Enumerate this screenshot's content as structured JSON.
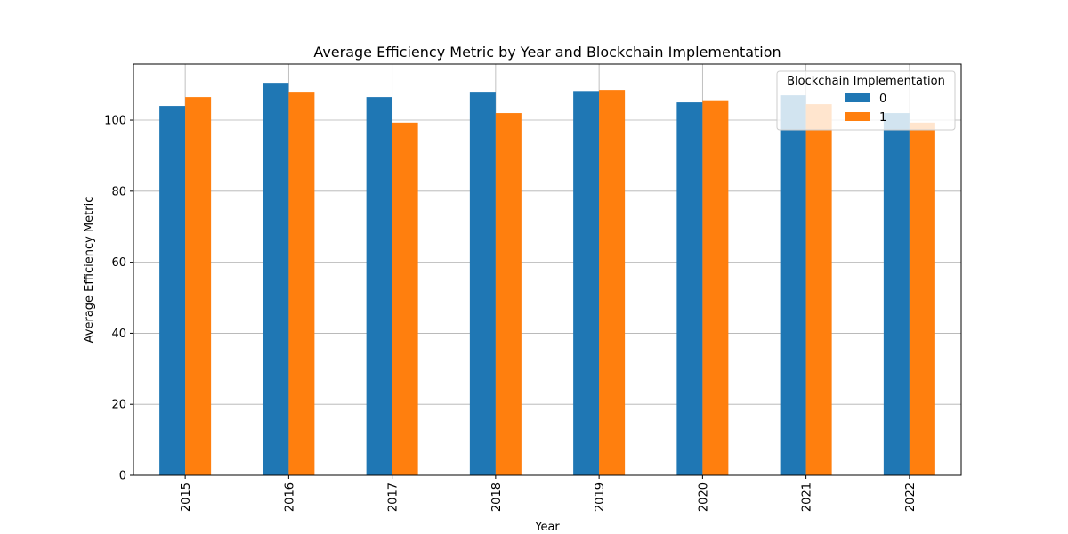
{
  "chart_data": {
    "type": "bar",
    "title": "Average Efficiency Metric by Year and Blockchain Implementation",
    "xlabel": "Year",
    "ylabel": "Average Efficiency Metric",
    "categories": [
      "2015",
      "2016",
      "2017",
      "2018",
      "2019",
      "2020",
      "2021",
      "2022"
    ],
    "series": [
      {
        "name": "0",
        "color": "#1f77b4",
        "values": [
          104.0,
          110.5,
          106.5,
          108.0,
          108.2,
          105.0,
          107.0,
          102.0
        ]
      },
      {
        "name": "1",
        "color": "#ff7f0e",
        "values": [
          106.5,
          108.0,
          99.3,
          102.0,
          108.5,
          105.6,
          104.5,
          99.3
        ]
      }
    ],
    "ylim": [
      0,
      115.8
    ],
    "yticks": [
      0,
      20,
      40,
      60,
      80,
      100
    ],
    "grid": true,
    "legend": {
      "title": "Blockchain Implementation",
      "placement": "top-right"
    }
  }
}
